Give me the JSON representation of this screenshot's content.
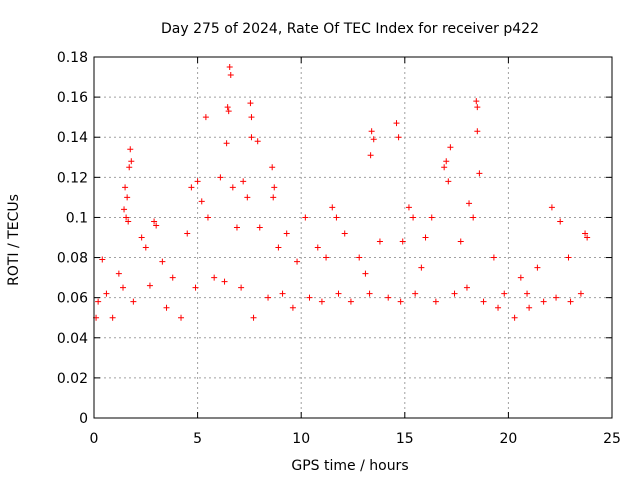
{
  "chart_data": {
    "type": "scatter",
    "title": "Day 275 of 2024, Rate Of TEC Index for receiver p422",
    "xlabel": "GPS time / hours",
    "ylabel": "ROTI / TECUs",
    "xlim": [
      0,
      25
    ],
    "ylim": [
      0,
      0.18
    ],
    "x_ticks": [
      "0",
      "5",
      "10",
      "15",
      "20",
      "25"
    ],
    "y_ticks": [
      "0",
      "0.02",
      "0.04",
      "0.06",
      "0.08",
      "0.1",
      "0.12",
      "0.14",
      "0.16",
      "0.18"
    ],
    "grid": true,
    "marker": "plus",
    "color": "#ff0000",
    "series": [
      {
        "points": [
          [
            6.55,
            0.175
          ],
          [
            6.6,
            0.171
          ],
          [
            6.45,
            0.155
          ],
          [
            6.5,
            0.153
          ],
          [
            18.45,
            0.158
          ],
          [
            18.5,
            0.155
          ],
          [
            5.4,
            0.15
          ],
          [
            7.55,
            0.157
          ],
          [
            7.6,
            0.15
          ],
          [
            14.6,
            0.147
          ],
          [
            13.4,
            0.143
          ],
          [
            13.5,
            0.139
          ],
          [
            18.5,
            0.143
          ],
          [
            7.6,
            0.14
          ],
          [
            7.9,
            0.138
          ],
          [
            6.4,
            0.137
          ],
          [
            13.35,
            0.131
          ],
          [
            14.7,
            0.14
          ],
          [
            1.75,
            0.134
          ],
          [
            1.8,
            0.128
          ],
          [
            1.7,
            0.125
          ],
          [
            17.2,
            0.135
          ],
          [
            17.0,
            0.128
          ],
          [
            16.9,
            0.125
          ],
          [
            17.1,
            0.118
          ],
          [
            18.6,
            0.122
          ],
          [
            1.5,
            0.115
          ],
          [
            1.6,
            0.11
          ],
          [
            5.0,
            0.118
          ],
          [
            8.6,
            0.125
          ],
          [
            8.7,
            0.115
          ],
          [
            8.65,
            0.11
          ],
          [
            6.1,
            0.12
          ],
          [
            6.7,
            0.115
          ],
          [
            7.2,
            0.118
          ],
          [
            4.7,
            0.115
          ],
          [
            1.45,
            0.104
          ],
          [
            1.55,
            0.1
          ],
          [
            1.65,
            0.098
          ],
          [
            2.9,
            0.098
          ],
          [
            3.0,
            0.096
          ],
          [
            5.2,
            0.108
          ],
          [
            5.5,
            0.1
          ],
          [
            7.4,
            0.11
          ],
          [
            9.3,
            0.092
          ],
          [
            11.5,
            0.105
          ],
          [
            11.7,
            0.1
          ],
          [
            15.2,
            0.105
          ],
          [
            15.4,
            0.1
          ],
          [
            16.3,
            0.1
          ],
          [
            18.1,
            0.107
          ],
          [
            18.3,
            0.1
          ],
          [
            22.1,
            0.105
          ],
          [
            22.5,
            0.098
          ],
          [
            23.8,
            0.09
          ],
          [
            23.7,
            0.092
          ],
          [
            10.2,
            0.1
          ],
          [
            12.1,
            0.092
          ],
          [
            2.3,
            0.09
          ],
          [
            0.4,
            0.079
          ],
          [
            2.5,
            0.085
          ],
          [
            3.3,
            0.078
          ],
          [
            4.5,
            0.092
          ],
          [
            6.9,
            0.095
          ],
          [
            8.0,
            0.095
          ],
          [
            8.9,
            0.085
          ],
          [
            10.8,
            0.085
          ],
          [
            12.8,
            0.08
          ],
          [
            13.8,
            0.088
          ],
          [
            14.9,
            0.088
          ],
          [
            16.0,
            0.09
          ],
          [
            17.7,
            0.088
          ],
          [
            19.3,
            0.08
          ],
          [
            20.6,
            0.07
          ],
          [
            21.4,
            0.075
          ],
          [
            22.9,
            0.08
          ],
          [
            1.2,
            0.072
          ],
          [
            3.8,
            0.07
          ],
          [
            9.8,
            0.078
          ],
          [
            11.2,
            0.08
          ],
          [
            13.1,
            0.072
          ],
          [
            15.8,
            0.075
          ],
          [
            19.8,
            0.062
          ],
          [
            20.9,
            0.062
          ],
          [
            0.2,
            0.058
          ],
          [
            0.6,
            0.062
          ],
          [
            0.9,
            0.05
          ],
          [
            1.4,
            0.065
          ],
          [
            1.9,
            0.058
          ],
          [
            2.7,
            0.066
          ],
          [
            3.5,
            0.055
          ],
          [
            4.2,
            0.05
          ],
          [
            4.9,
            0.065
          ],
          [
            5.8,
            0.07
          ],
          [
            6.3,
            0.068
          ],
          [
            7.1,
            0.065
          ],
          [
            7.7,
            0.05
          ],
          [
            8.4,
            0.06
          ],
          [
            9.1,
            0.062
          ],
          [
            9.6,
            0.055
          ],
          [
            10.4,
            0.06
          ],
          [
            11.0,
            0.058
          ],
          [
            11.8,
            0.062
          ],
          [
            12.4,
            0.058
          ],
          [
            13.3,
            0.062
          ],
          [
            14.2,
            0.06
          ],
          [
            14.8,
            0.058
          ],
          [
            15.5,
            0.062
          ],
          [
            16.5,
            0.058
          ],
          [
            17.4,
            0.062
          ],
          [
            18.0,
            0.065
          ],
          [
            18.8,
            0.058
          ],
          [
            19.5,
            0.055
          ],
          [
            20.3,
            0.05
          ],
          [
            21.0,
            0.055
          ],
          [
            21.7,
            0.058
          ],
          [
            22.3,
            0.06
          ],
          [
            23.0,
            0.058
          ],
          [
            23.5,
            0.062
          ],
          [
            0.1,
            0.05
          ]
        ]
      }
    ]
  }
}
